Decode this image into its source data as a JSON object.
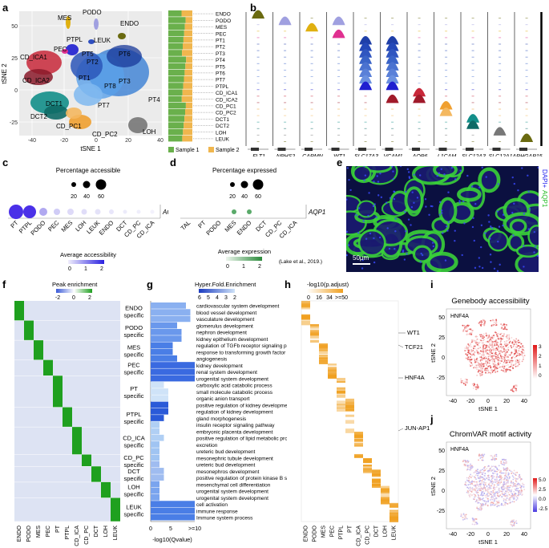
{
  "panel_letters": [
    "a",
    "b",
    "c",
    "d",
    "e",
    "f",
    "g",
    "h",
    "i",
    "j"
  ],
  "panel_a": {
    "xlabel": "tSNE 1",
    "ylabel": "tSNE 2",
    "xticks": [
      "-40",
      "-20",
      "0",
      "20",
      "40"
    ],
    "yticks": [
      "50",
      "25",
      "0",
      "-25"
    ],
    "clusters": [
      "MES",
      "PODO",
      "ENDO",
      "LEUK",
      "PTPL",
      "PEC",
      "CD_ICA1",
      "CD_ICA2",
      "PT1",
      "PT2",
      "PT3",
      "PT4",
      "PT5",
      "PT6",
      "PT7",
      "PT8",
      "DCT1",
      "DCT2",
      "CD_PC1",
      "CD_PC2",
      "LOH"
    ],
    "bar_labels": [
      "ENDO",
      "PODO",
      "MES",
      "PEC",
      "PT1",
      "PT2",
      "PT3",
      "PT4",
      "PT5",
      "PT6",
      "PT7",
      "PTPL",
      "CD_ICA1",
      "CD_ICA2",
      "CD_PC1",
      "CD_PC2",
      "DCT1",
      "DCT2",
      "LOH",
      "LEUK"
    ],
    "legend": [
      "Sample 1",
      "Sample 2"
    ],
    "colors": {
      "sample1": "#6ab04c",
      "sample2": "#f0b64e"
    }
  },
  "panel_b": {
    "genes": [
      "FLT1",
      "NPHS2",
      "CARMN",
      "WT1",
      "SLC17A3",
      "VCAM1",
      "AQP6",
      "L1CAM",
      "SLC12A3",
      "SLC12A1",
      "ARHGAP15"
    ]
  },
  "panel_c": {
    "size_title": "Percentage accessible",
    "size_values": [
      "20",
      "40",
      "60"
    ],
    "gene": "AQP1",
    "categories": [
      "PT",
      "PTPL",
      "PODO",
      "PEC",
      "MES",
      "LOH",
      "LEUK",
      "ENDO",
      "DCT",
      "CD_PC",
      "CD_ICA"
    ],
    "color_title": "Average accessibility",
    "color_ticks": [
      "0",
      "1",
      "2"
    ]
  },
  "panel_d": {
    "size_title": "Percentage expressed",
    "size_values": [
      "20",
      "40",
      "60"
    ],
    "gene": "AQP1",
    "categories": [
      "TAL",
      "PT",
      "PODO",
      "MES",
      "ENDO",
      "DCT",
      "CD_PC",
      "CD_ICA"
    ],
    "color_title": "Average expression",
    "color_ticks": [
      "0",
      "1",
      "2"
    ],
    "citation": "(Lake et al., 2019.)"
  },
  "panel_e": {
    "stain_label_1": "DAPI+",
    "stain_label_2": "AQP1",
    "scale": "50μm"
  },
  "panel_f": {
    "title": "Peak enrichment",
    "ticks": [
      "-2",
      "0",
      "2"
    ],
    "groups": [
      "ENDO specific",
      "PODO specific",
      "MES specific",
      "PEC specific",
      "PT specific",
      "PTPL specific",
      "CD_ICA specific",
      "CD_PC specific",
      "DCT specific",
      "LOH specific",
      "LEUK specific"
    ],
    "columns": [
      "ENDO",
      "PODO",
      "MES",
      "PEC",
      "PT",
      "PTPL",
      "CD_ICA",
      "CD_PC",
      "DCT",
      "LOH",
      "LEUK"
    ]
  },
  "panel_g": {
    "title": "Hyper.Fold.Enrichment",
    "ticks": [
      "6",
      "5",
      "4",
      "3",
      "2"
    ],
    "xticks": [
      "0",
      "5",
      ">=10"
    ],
    "xlabel": "-log10(Qvalue)",
    "terms": [
      "cardiovascular system development",
      "blood vessel development",
      "vasculature development",
      "glomerulus development",
      "nephron development",
      "kidney epithelium development",
      "regulation of TGFb receptor signaling pathway",
      "response to transforming growth factor beta",
      "angiogenesis",
      "kidney development",
      "renal system development",
      "urogenital system development",
      "carboxylic acid catabolic process",
      "small molecule catabolic process",
      "organic anion transport",
      "positive regulation of kidney development",
      "regulation of kidney development",
      "gland morphogenesis",
      "insulin receptor signaling pathway",
      "embryonic placenta development",
      "positive regulation of lipid metabolic process",
      "excretion",
      "ureteric bud development",
      "mesonephric tubule development",
      "ureteric bud development",
      "mesonephros development",
      "positive regulation of protein kinase B signaling",
      "mesenchymal cell differentiation",
      "urogenital system development",
      "urogenital system development",
      "cell activation",
      "immune response",
      "Immune system process"
    ],
    "q_values": [
      8,
      9,
      9,
      6,
      7,
      7,
      5,
      5,
      6,
      10,
      10,
      10,
      3,
      4,
      4,
      4,
      4,
      3,
      2,
      2,
      3,
      2,
      2,
      2,
      2,
      3,
      3,
      2,
      2,
      2,
      10,
      10,
      10
    ]
  },
  "panel_h": {
    "title": "-log10(p.adjust)",
    "ticks": [
      "0",
      "16",
      "34",
      ">=50"
    ],
    "columns": [
      "ENDO",
      "PODO",
      "MES",
      "PEC",
      "PTPL",
      "PT",
      "CD_ICA",
      "CD_PC",
      "DCT",
      "LOH",
      "LEUK"
    ],
    "annotations": [
      "WT1",
      "TCF21",
      "HNF4A",
      "JUN-AP1"
    ]
  },
  "panel_i": {
    "title": "Genebody accessibility",
    "gene": "HNF4A",
    "xlabel": "tSNE 1",
    "ylabel": "tSNE 2",
    "xticks": [
      "-40",
      "-20",
      "0",
      "20",
      "40"
    ],
    "yticks": [
      "50",
      "25",
      "0",
      "-25"
    ],
    "scale_ticks": [
      "3",
      "2",
      "1",
      "0"
    ]
  },
  "panel_j": {
    "title": "ChromVAR motif activity",
    "gene": "HNF4A",
    "xlabel": "tSNE 1",
    "ylabel": "tSNE 2",
    "xticks": [
      "-40",
      "-20",
      "0",
      "20",
      "40"
    ],
    "yticks": [
      "50",
      "25",
      "0",
      "-25"
    ],
    "scale_ticks": [
      "5.0",
      "2.5",
      "0.0",
      "-2.5"
    ]
  }
}
